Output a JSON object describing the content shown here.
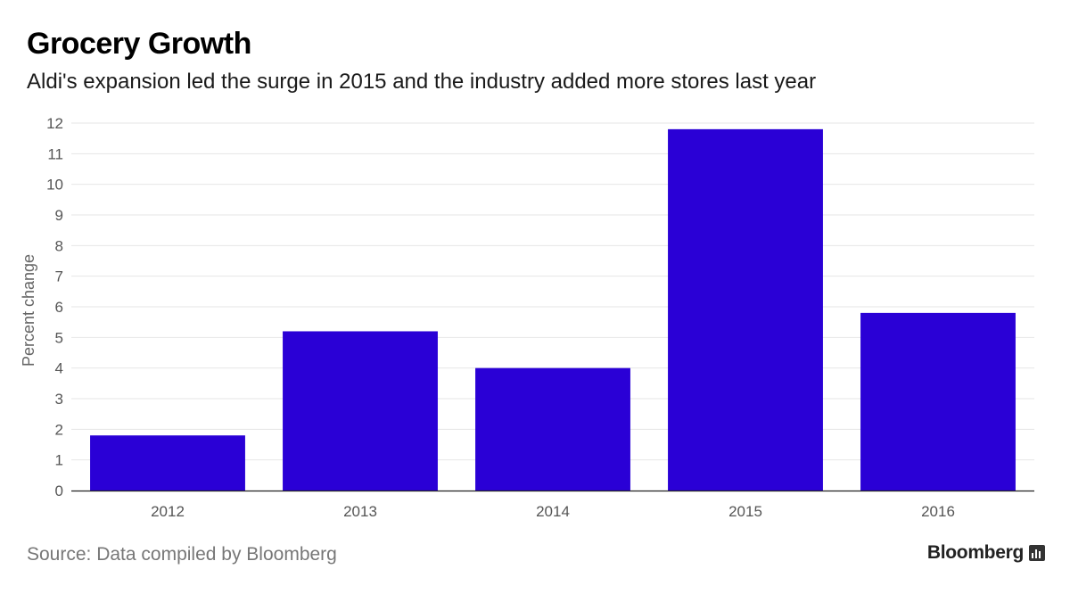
{
  "header": {
    "title": "Grocery Growth",
    "subtitle": "Aldi's expansion led the surge in 2015 and the industry added more stores last year"
  },
  "footer": {
    "source": "Source: Data compiled by Bloomberg",
    "brand": "Bloomberg"
  },
  "colors": {
    "bar": "#2a00d6",
    "grid": "#e6e6e6",
    "axis": "#222222"
  },
  "chart_data": {
    "type": "bar",
    "categories": [
      "2012",
      "2013",
      "2014",
      "2015",
      "2016"
    ],
    "values": [
      1.8,
      5.2,
      4.0,
      11.8,
      5.8
    ],
    "title": "",
    "xlabel": "",
    "ylabel": "Percent change",
    "ylim": [
      0,
      12
    ],
    "yticks": [
      0,
      1,
      2,
      3,
      4,
      5,
      6,
      7,
      8,
      9,
      10,
      11,
      12
    ],
    "grid": true,
    "legend": "none"
  }
}
